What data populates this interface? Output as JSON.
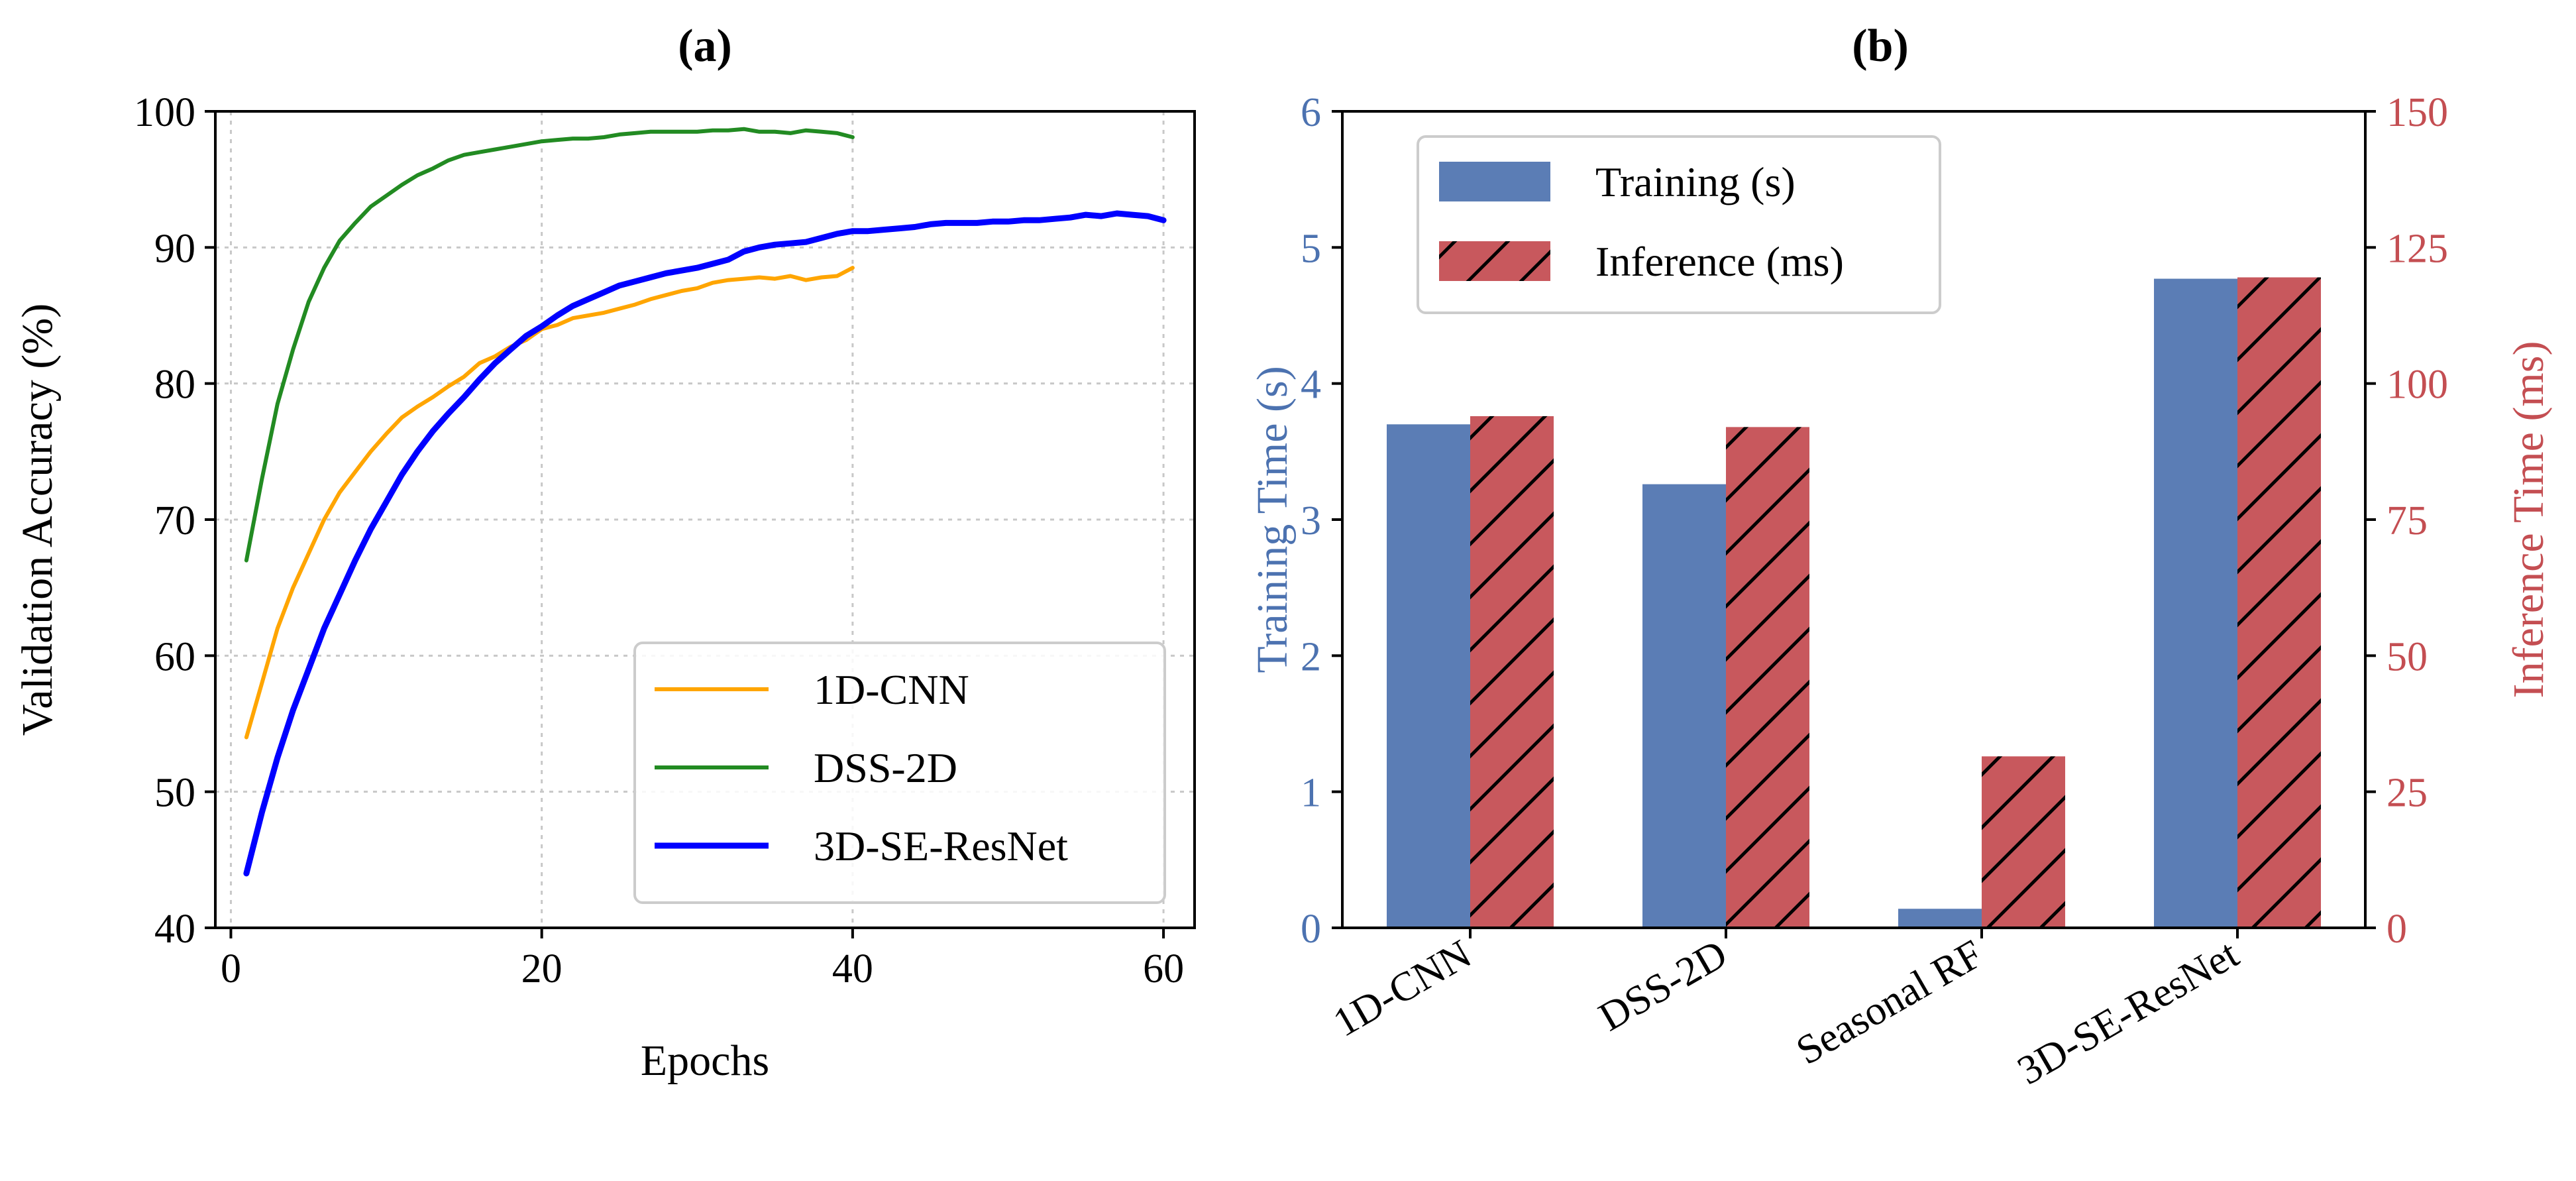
{
  "chart_data": [
    {
      "type": "line",
      "title": "(a)",
      "xlabel": "Epochs",
      "ylabel": "Validation Accuracy (%)",
      "xlim": [
        -1,
        62
      ],
      "ylim": [
        40,
        100
      ],
      "xticks": [
        0,
        20,
        40,
        60
      ],
      "yticks": [
        40,
        50,
        60,
        70,
        80,
        90,
        100
      ],
      "grid": true,
      "legend_position": "lower-right",
      "series": [
        {
          "name": "1D-CNN",
          "color": "#FFA500",
          "x": [
            1,
            2,
            3,
            4,
            5,
            6,
            7,
            8,
            9,
            10,
            11,
            12,
            13,
            14,
            15,
            16,
            17,
            18,
            19,
            20,
            21,
            22,
            23,
            24,
            25,
            26,
            27,
            28,
            29,
            30,
            31,
            32,
            33,
            34,
            35,
            36,
            37,
            38,
            39,
            40
          ],
          "y": [
            54,
            58,
            62,
            65,
            67.5,
            70,
            72,
            73.5,
            75,
            76.3,
            77.5,
            78.3,
            79,
            79.8,
            80.5,
            81.5,
            82,
            82.7,
            83.2,
            84,
            84.3,
            84.8,
            85,
            85.2,
            85.5,
            85.8,
            86.2,
            86.5,
            86.8,
            87,
            87.4,
            87.6,
            87.7,
            87.8,
            87.7,
            87.9,
            87.6,
            87.8,
            87.9,
            88.5
          ]
        },
        {
          "name": "DSS-2D",
          "color": "#228B22",
          "x": [
            1,
            2,
            3,
            4,
            5,
            6,
            7,
            8,
            9,
            10,
            11,
            12,
            13,
            14,
            15,
            16,
            17,
            18,
            19,
            20,
            21,
            22,
            23,
            24,
            25,
            26,
            27,
            28,
            29,
            30,
            31,
            32,
            33,
            34,
            35,
            36,
            37,
            38,
            39,
            40
          ],
          "y": [
            67,
            73,
            78.5,
            82.5,
            86,
            88.5,
            90.5,
            91.8,
            93,
            93.8,
            94.6,
            95.3,
            95.8,
            96.4,
            96.8,
            97,
            97.2,
            97.4,
            97.6,
            97.8,
            97.9,
            98,
            98,
            98.1,
            98.3,
            98.4,
            98.5,
            98.5,
            98.5,
            98.5,
            98.6,
            98.6,
            98.7,
            98.5,
            98.5,
            98.4,
            98.6,
            98.5,
            98.4,
            98.1
          ]
        },
        {
          "name": "3D-SE-ResNet",
          "color": "#0000FF",
          "x": [
            1,
            2,
            3,
            4,
            5,
            6,
            7,
            8,
            9,
            10,
            11,
            12,
            13,
            14,
            15,
            16,
            17,
            18,
            19,
            20,
            21,
            22,
            23,
            24,
            25,
            26,
            27,
            28,
            29,
            30,
            31,
            32,
            33,
            34,
            35,
            36,
            37,
            38,
            39,
            40,
            41,
            42,
            43,
            44,
            45,
            46,
            47,
            48,
            49,
            50,
            51,
            52,
            53,
            54,
            55,
            56,
            57,
            58,
            59,
            60
          ],
          "y": [
            44,
            48.5,
            52.5,
            56,
            59,
            62,
            64.5,
            67,
            69.3,
            71.3,
            73.3,
            75,
            76.5,
            77.8,
            79,
            80.3,
            81.5,
            82.5,
            83.5,
            84.2,
            85,
            85.7,
            86.2,
            86.7,
            87.2,
            87.5,
            87.8,
            88.1,
            88.3,
            88.5,
            88.8,
            89.1,
            89.7,
            90,
            90.2,
            90.3,
            90.4,
            90.7,
            91,
            91.2,
            91.2,
            91.3,
            91.4,
            91.5,
            91.7,
            91.8,
            91.8,
            91.8,
            91.9,
            91.9,
            92,
            92,
            92.1,
            92.2,
            92.4,
            92.3,
            92.5,
            92.4,
            92.3,
            92
          ]
        }
      ]
    },
    {
      "type": "bar",
      "title": "(b)",
      "categories": [
        "1D-CNN",
        "DSS-2D",
        "Seasonal RF",
        "3D-SE-ResNet"
      ],
      "ylabel": "Training Time (s)",
      "ylabel_right": "Inference Time (ms)",
      "ylim": [
        0,
        6
      ],
      "ylim_right": [
        0,
        150
      ],
      "yticks": [
        0,
        1,
        2,
        3,
        4,
        5,
        6
      ],
      "yticks_right": [
        0,
        25,
        50,
        75,
        100,
        125,
        150
      ],
      "left_axis_color": "#4C72B0",
      "right_axis_color": "#C44E52",
      "legend_position": "top-left",
      "series": [
        {
          "name": "Training (s)",
          "color": "#5B7DB5",
          "axis": "left",
          "values": [
            3.7,
            3.26,
            0.14,
            4.77
          ]
        },
        {
          "name": "Inference (ms)",
          "color": "#C8585D",
          "axis": "right",
          "hatch": "/",
          "values": [
            94,
            92,
            31.5,
            119.5
          ]
        }
      ]
    }
  ]
}
